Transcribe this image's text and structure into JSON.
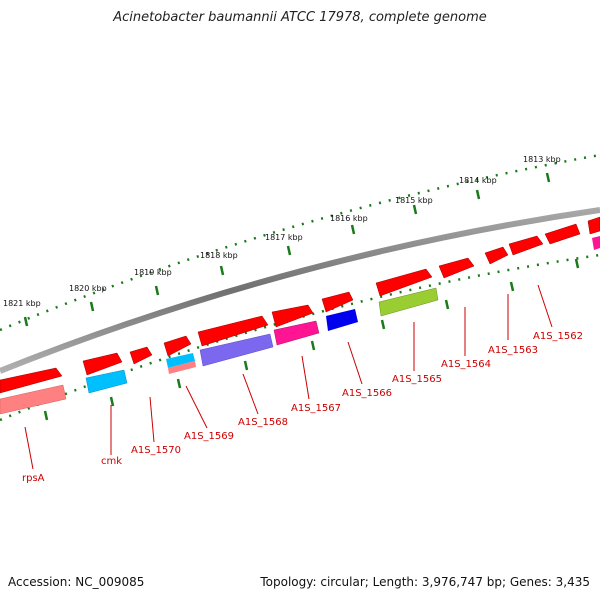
{
  "title": "Acinetobacter baumannii ATCC 17978, complete genome",
  "footer": {
    "accession": "Accession: NC_009085",
    "summary": "Topology: circular; Length: 3,976,747 bp; Genes: 3,435"
  },
  "kbp_labels": [
    "1813 kbp",
    "1814 kbp",
    "1815 kbp",
    "1816 kbp",
    "1817 kbp",
    "1818 kbp",
    "1819 kbp",
    "1820 kbp",
    "1821 kbp"
  ],
  "gene_labels": [
    "A1S_1562",
    "A1S_1563",
    "A1S_1564",
    "A1S_1565",
    "A1S_1566",
    "A1S_1567",
    "A1S_1568",
    "A1S_1569",
    "A1S_1570",
    "cmk",
    "rpsA"
  ],
  "colors": {
    "cds_red": "#ff0000",
    "cyan": "#00bfff",
    "blue": "#0000ee",
    "purple": "#7b68ee",
    "magenta": "#ff1493",
    "lime": "#9acd32",
    "pink": "#ff8080",
    "backbone": "#808080",
    "tick_green": "#1a7a1a",
    "label_red": "#cc0000"
  }
}
